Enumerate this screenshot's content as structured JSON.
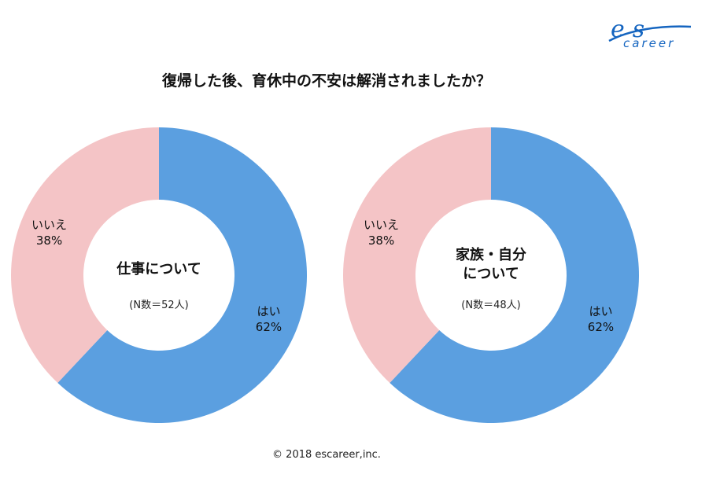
{
  "title": "復帰した後、育休中の不安は解消されましたか？",
  "footer": "© 2018  escareer,inc.",
  "logo": {
    "mark": "es",
    "word": "career"
  },
  "colors": {
    "yes": "#5b9fe0",
    "no": "#f4c4c6",
    "brand": "#1565c0"
  },
  "chart_data": [
    {
      "type": "pie",
      "center_title": [
        "仕事について"
      ],
      "n_label": "(N数＝52人)",
      "slices": [
        {
          "label": "はい",
          "value": 62,
          "value_label": "62%",
          "color": "#5b9fe0"
        },
        {
          "label": "いいえ",
          "value": 38,
          "value_label": "38%",
          "color": "#f4c4c6"
        }
      ]
    },
    {
      "type": "pie",
      "center_title": [
        "家族・自分",
        "について"
      ],
      "n_label": "(N数＝48人)",
      "slices": [
        {
          "label": "はい",
          "value": 62,
          "value_label": "62%",
          "color": "#5b9fe0"
        },
        {
          "label": "いいえ",
          "value": 38,
          "value_label": "38%",
          "color": "#f4c4c6"
        }
      ]
    }
  ]
}
